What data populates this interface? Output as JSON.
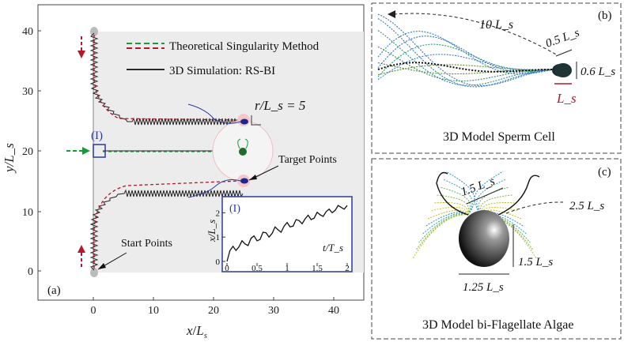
{
  "panel_a": {
    "label": "(a)",
    "legend": {
      "theory": "Theoretical Singularity Method",
      "sim": "3D Simulation: RS-BI"
    },
    "xlabel_italic": "x",
    "xlabel_sub": "L",
    "xlabel_subsub": "s",
    "ylabel": "y/L_s",
    "xticks": [
      "0",
      "10",
      "20",
      "30",
      "40"
    ],
    "yticks": [
      "0",
      "10",
      "20",
      "30",
      "40"
    ],
    "radius_label": "r/L_s = 5",
    "target_label": "Target Points",
    "start_label": "Start Points",
    "marker_label": "(I)",
    "inset": {
      "label": "(I)",
      "xlabel": "t/T_s",
      "ylabel": "x/L_s",
      "xticks": [
        "0",
        "0.5",
        "1",
        "1.5",
        "2"
      ],
      "yticks": [
        "0",
        "1",
        "2"
      ]
    }
  },
  "panel_b": {
    "label": "(b)",
    "title": "3D Model Sperm Cell",
    "dim_length": "10 L_s",
    "dim_head_width": "0.5 L_s",
    "dim_head_height": "0.6 L_s",
    "dim_head_length": "L_s"
  },
  "panel_c": {
    "label": "(c)",
    "title": "3D Model bi-Flagellate Algae",
    "dim_flag_gap": "1.5 L_s",
    "dim_flag_len": "2.5 L_s",
    "dim_height": "1.5 L_s",
    "dim_width": "1.25 L_s"
  },
  "colors": {
    "green": "#1a9a3a",
    "red": "#b21a2a",
    "blue": "#2a3b9a",
    "gray_region": "#ececec"
  },
  "chart_data": {
    "type": "line",
    "title": "(I)",
    "xlabel": "t/T_s",
    "ylabel": "x/L_s",
    "xlim": [
      0,
      2
    ],
    "ylim": [
      0,
      2.5
    ],
    "x": [
      0,
      0.05,
      0.1,
      0.15,
      0.2,
      0.25,
      0.3,
      0.35,
      0.4,
      0.45,
      0.5,
      0.55,
      0.6,
      0.65,
      0.7,
      0.75,
      0.8,
      0.85,
      0.9,
      0.95,
      1.0,
      1.05,
      1.1,
      1.15,
      1.2,
      1.25,
      1.3,
      1.35,
      1.4,
      1.45,
      1.5,
      1.55,
      1.6,
      1.65,
      1.7,
      1.75,
      1.8,
      1.85,
      1.9,
      1.95,
      2.0
    ],
    "series": [
      {
        "name": "x/L_s",
        "values": [
          0.0,
          0.45,
          0.62,
          0.45,
          0.6,
          0.85,
          0.72,
          0.65,
          0.95,
          1.05,
          0.85,
          0.9,
          1.2,
          1.18,
          1.0,
          1.15,
          1.42,
          1.3,
          1.2,
          1.45,
          1.6,
          1.42,
          1.45,
          1.72,
          1.68,
          1.55,
          1.75,
          1.9,
          1.72,
          1.78,
          2.02,
          1.92,
          1.85,
          2.05,
          2.15,
          2.0,
          2.1,
          2.3,
          2.22,
          2.15,
          2.3
        ]
      }
    ]
  }
}
